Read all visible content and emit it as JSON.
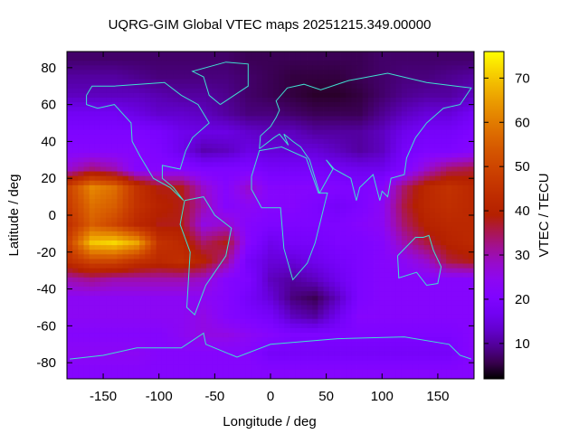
{
  "chart_data": {
    "type": "heatmap",
    "title": "UQRG-GIM Global VTEC maps 20251215.349.00000",
    "xlabel": "Longitude / deg",
    "ylabel": "Latitude / deg",
    "colorbar_label": "VTEC / TECU",
    "xlim": [
      -182.5,
      182.5
    ],
    "ylim": [
      -88.75,
      88.75
    ],
    "clim": [
      2,
      76
    ],
    "xticks": [
      -150,
      -100,
      -50,
      0,
      50,
      100,
      150
    ],
    "yticks": [
      -80,
      -60,
      -40,
      -20,
      0,
      20,
      40,
      60,
      80
    ],
    "cbticks": [
      10,
      20,
      30,
      40,
      50,
      60,
      70
    ],
    "palette": "black-purple-red-yellow (gnuplot rgbformulae 7,5,15)",
    "overlay": "coastlines",
    "overlay_color": "#40e0d0",
    "grid": false,
    "grid_lon": [
      -180,
      -160,
      -140,
      -120,
      -100,
      -80,
      -60,
      -40,
      -20,
      0,
      20,
      40,
      60,
      80,
      100,
      120,
      140,
      160,
      180
    ],
    "grid_lat": [
      85,
      75,
      65,
      55,
      45,
      35,
      25,
      15,
      5,
      -5,
      -15,
      -25,
      -35,
      -45,
      -55,
      -65,
      -75,
      -85
    ],
    "values": [
      [
        7,
        7,
        7,
        7,
        7,
        7,
        7,
        7,
        6,
        6,
        6,
        6,
        6,
        6,
        7,
        7,
        7,
        7,
        7
      ],
      [
        10,
        10,
        10,
        9,
        8,
        8,
        8,
        8,
        7,
        6,
        5,
        5,
        5,
        6,
        7,
        8,
        8,
        9,
        10
      ],
      [
        12,
        12,
        12,
        12,
        11,
        10,
        10,
        9,
        7,
        6,
        5,
        4,
        4,
        5,
        7,
        9,
        10,
        10,
        12
      ],
      [
        17,
        17,
        17,
        15,
        13,
        13,
        12,
        10,
        8,
        8,
        7,
        6,
        6,
        6,
        9,
        12,
        14,
        14,
        17
      ],
      [
        20,
        20,
        20,
        20,
        19,
        16,
        15,
        15,
        13,
        12,
        12,
        10,
        10,
        10,
        12,
        16,
        18,
        18,
        20
      ],
      [
        22,
        22,
        22,
        22,
        20,
        16,
        11,
        12,
        15,
        14,
        14,
        14,
        12,
        10,
        12,
        18,
        20,
        20,
        22
      ],
      [
        28,
        33,
        30,
        22,
        22,
        22,
        20,
        20,
        20,
        18,
        18,
        18,
        17,
        16,
        16,
        20,
        28,
        34,
        36
      ],
      [
        50,
        62,
        58,
        45,
        38,
        38,
        28,
        22,
        28,
        22,
        22,
        22,
        21,
        20,
        22,
        34,
        42,
        45,
        42
      ],
      [
        48,
        58,
        55,
        45,
        40,
        38,
        30,
        22,
        24,
        22,
        22,
        20,
        18,
        20,
        24,
        36,
        42,
        44,
        42
      ],
      [
        45,
        55,
        50,
        42,
        38,
        38,
        26,
        28,
        22,
        20,
        20,
        20,
        20,
        22,
        24,
        34,
        40,
        42,
        42
      ],
      [
        50,
        70,
        72,
        66,
        45,
        42,
        34,
        38,
        22,
        16,
        18,
        18,
        20,
        20,
        22,
        30,
        36,
        40,
        42
      ],
      [
        44,
        50,
        50,
        45,
        42,
        44,
        40,
        32,
        18,
        14,
        14,
        16,
        18,
        20,
        22,
        24,
        28,
        36,
        38
      ],
      [
        30,
        32,
        30,
        30,
        30,
        30,
        28,
        22,
        20,
        12,
        10,
        12,
        16,
        20,
        22,
        22,
        22,
        22,
        22
      ],
      [
        24,
        24,
        24,
        24,
        24,
        24,
        24,
        22,
        18,
        14,
        8,
        6,
        12,
        20,
        22,
        22,
        22,
        22,
        22
      ],
      [
        24,
        24,
        24,
        24,
        24,
        24,
        26,
        22,
        20,
        18,
        12,
        10,
        16,
        22,
        22,
        22,
        22,
        22,
        22
      ],
      [
        22,
        22,
        22,
        22,
        22,
        24,
        26,
        26,
        24,
        22,
        20,
        20,
        20,
        20,
        20,
        20,
        20,
        20,
        22
      ],
      [
        24,
        24,
        24,
        24,
        22,
        22,
        22,
        22,
        22,
        18,
        18,
        18,
        18,
        18,
        18,
        18,
        18,
        18,
        22
      ],
      [
        22,
        22,
        22,
        22,
        22,
        22,
        22,
        22,
        22,
        22,
        22,
        22,
        22,
        22,
        22,
        22,
        22,
        22,
        22
      ]
    ]
  }
}
